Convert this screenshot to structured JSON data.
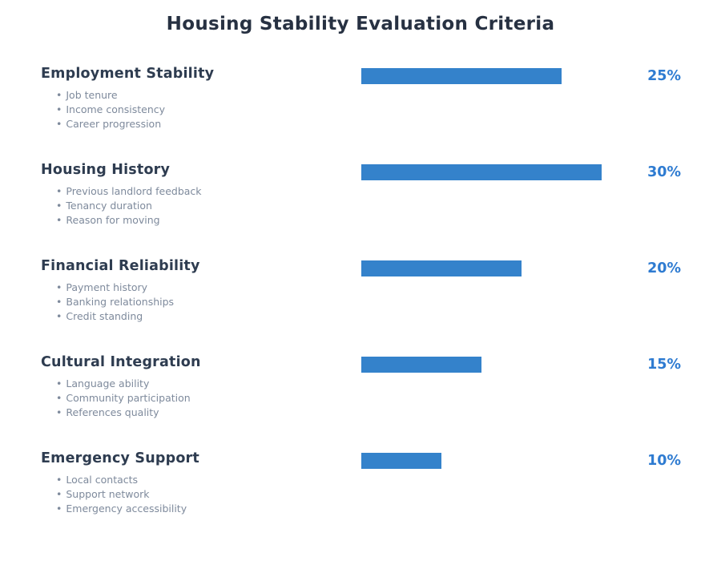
{
  "title": "Housing Stability Evaluation Criteria",
  "glyphs": {
    "bullet": "•"
  },
  "colors": {
    "background": "#ffffff",
    "title_text": "#273142",
    "heading_text": "#2e3c50",
    "bullet_text": "#7e8a9c",
    "bar": "#3482cb",
    "percent_label": "#2e7bd1"
  },
  "sections": [
    {
      "name": "Employment Stability",
      "percent": 25,
      "percent_label": "25%",
      "bullets": [
        "Job tenure",
        "Income consistency",
        "Career progression"
      ]
    },
    {
      "name": "Housing History",
      "percent": 30,
      "percent_label": "30%",
      "bullets": [
        "Previous landlord feedback",
        "Tenancy duration",
        "Reason for moving"
      ]
    },
    {
      "name": "Financial Reliability",
      "percent": 20,
      "percent_label": "20%",
      "bullets": [
        "Payment history",
        "Banking relationships",
        "Credit standing"
      ]
    },
    {
      "name": "Cultural Integration",
      "percent": 15,
      "percent_label": "15%",
      "bullets": [
        "Language ability",
        "Community participation",
        "References quality"
      ]
    },
    {
      "name": "Emergency Support",
      "percent": 10,
      "percent_label": "10%",
      "bullets": [
        "Local contacts",
        "Support network",
        "Emergency accessibility"
      ]
    }
  ],
  "chart_data": {
    "type": "bar",
    "orientation": "horizontal",
    "title": "Housing Stability Evaluation Criteria",
    "categories": [
      "Employment Stability",
      "Housing History",
      "Financial Reliability",
      "Cultural Integration",
      "Emergency Support"
    ],
    "values": [
      25,
      30,
      20,
      15,
      10
    ],
    "data_labels": [
      "25%",
      "30%",
      "20%",
      "15%",
      "10%"
    ],
    "value_unit": "percent",
    "axis_range": [
      0,
      40
    ],
    "axes_visible": false,
    "grid": false,
    "legend": false,
    "bar_color": "#3482cb",
    "category_details": {
      "Employment Stability": [
        "Job tenure",
        "Income consistency",
        "Career progression"
      ],
      "Housing History": [
        "Previous landlord feedback",
        "Tenancy duration",
        "Reason for moving"
      ],
      "Financial Reliability": [
        "Payment history",
        "Banking relationships",
        "Credit standing"
      ],
      "Cultural Integration": [
        "Language ability",
        "Community participation",
        "References quality"
      ],
      "Emergency Support": [
        "Local contacts",
        "Support network",
        "Emergency accessibility"
      ]
    }
  }
}
